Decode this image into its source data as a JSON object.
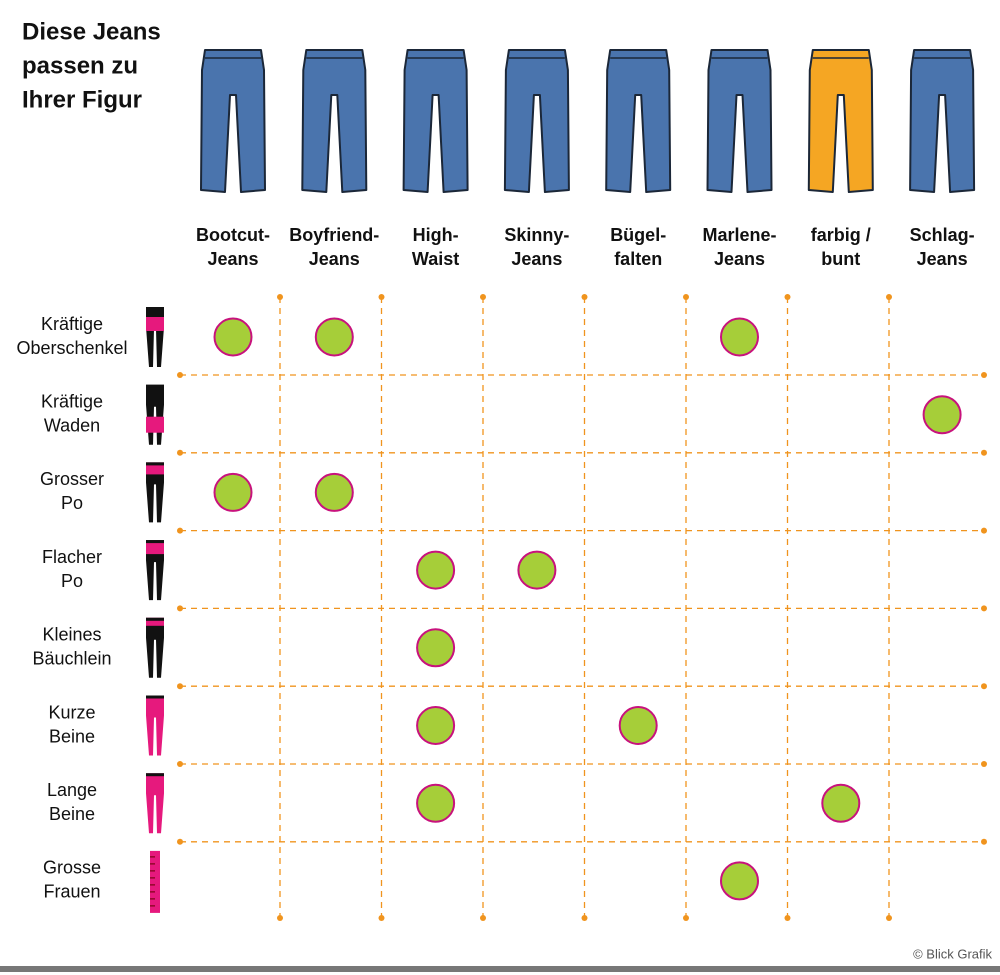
{
  "title": {
    "lines": [
      "Diese Jeans",
      "passen zu",
      "Ihrer Figur"
    ]
  },
  "columns": [
    {
      "lines": [
        "Bootcut-",
        "Jeans"
      ],
      "color": "#4a74ad"
    },
    {
      "lines": [
        "Boyfriend-",
        "Jeans"
      ],
      "color": "#4a74ad"
    },
    {
      "lines": [
        "High-",
        "Waist"
      ],
      "color": "#4a74ad"
    },
    {
      "lines": [
        "Skinny-",
        "Jeans"
      ],
      "color": "#4a74ad"
    },
    {
      "lines": [
        "Bügel-",
        "falten"
      ],
      "color": "#4a74ad"
    },
    {
      "lines": [
        "Marlene-",
        "Jeans"
      ],
      "color": "#4a74ad"
    },
    {
      "lines": [
        "farbig /",
        "bunt"
      ],
      "color": "#f5a623"
    },
    {
      "lines": [
        "Schlag-",
        "Jeans"
      ],
      "color": "#4a74ad"
    }
  ],
  "rows": [
    {
      "lines": [
        "Kräftige",
        "Oberschenkel"
      ],
      "matches": [
        0,
        1,
        5
      ]
    },
    {
      "lines": [
        "Kräftige",
        "Waden"
      ],
      "matches": [
        7
      ]
    },
    {
      "lines": [
        "Grosser",
        "Po"
      ],
      "matches": [
        0,
        1
      ]
    },
    {
      "lines": [
        "Flacher",
        "Po"
      ],
      "matches": [
        2,
        3
      ]
    },
    {
      "lines": [
        "Kleines",
        "Bäuchlein"
      ],
      "matches": [
        2
      ]
    },
    {
      "lines": [
        "Kurze",
        "Beine"
      ],
      "matches": [
        2,
        4
      ]
    },
    {
      "lines": [
        "Lange",
        "Beine"
      ],
      "matches": [
        2,
        6
      ]
    },
    {
      "lines": [
        "Grosse",
        "Frauen"
      ],
      "matches": [
        5
      ]
    }
  ],
  "credit": "© Blick Grafik"
}
